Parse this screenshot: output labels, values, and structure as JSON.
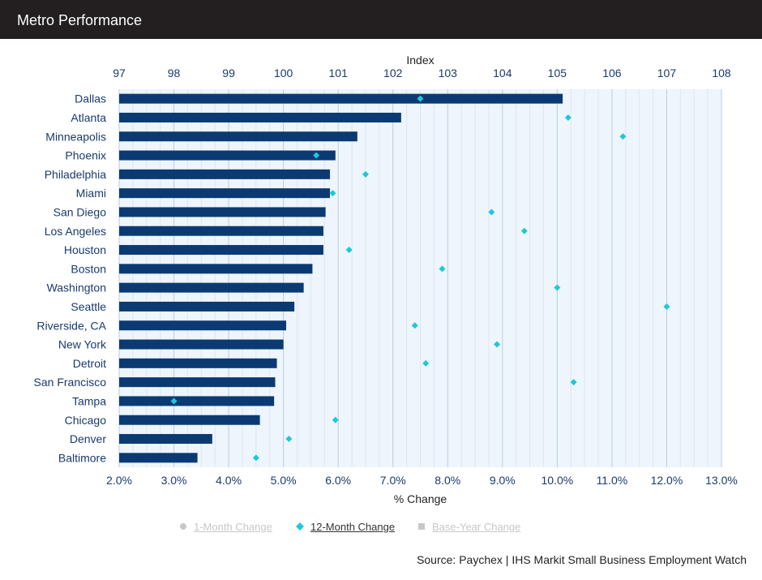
{
  "header": {
    "title": "Metro Performance"
  },
  "chart_data": {
    "type": "bar",
    "orientation": "horizontal",
    "categories": [
      "Dallas",
      "Atlanta",
      "Minneapolis",
      "Phoenix",
      "Philadelphia",
      "Miami",
      "San Diego",
      "Los Angeles",
      "Houston",
      "Boston",
      "Washington",
      "Seattle",
      "Riverside, CA",
      "New York",
      "Detroit",
      "San Francisco",
      "Tampa",
      "Chicago",
      "Denver",
      "Baltimore"
    ],
    "series": [
      {
        "name": "Index",
        "kind": "bar",
        "axis": "top",
        "color": "#0b3a73",
        "values": [
          105.1,
          102.15,
          101.35,
          100.95,
          100.85,
          100.85,
          100.77,
          100.73,
          100.73,
          100.53,
          100.37,
          100.2,
          100.05,
          100.0,
          99.88,
          99.85,
          99.83,
          99.57,
          98.7,
          98.43
        ]
      },
      {
        "name": "12-Month Change",
        "kind": "diamond",
        "axis": "bottom",
        "color": "#1ec8dc",
        "values": [
          7.5,
          10.2,
          11.2,
          5.6,
          6.5,
          5.9,
          8.8,
          9.4,
          6.2,
          7.9,
          10.0,
          12.0,
          7.4,
          8.9,
          7.6,
          10.3,
          3.0,
          5.95,
          5.1,
          4.5
        ]
      }
    ],
    "top_axis": {
      "label": "Index",
      "ticks": [
        "97",
        "98",
        "99",
        "100",
        "101",
        "102",
        "103",
        "104",
        "105",
        "106",
        "107",
        "108"
      ],
      "range": [
        97,
        108
      ]
    },
    "bottom_axis": {
      "label": "% Change",
      "ticks": [
        "2.0%",
        "3.0%",
        "4.0%",
        "5.0%",
        "6.0%",
        "7.0%",
        "8.0%",
        "9.0%",
        "10.0%",
        "11.0%",
        "12.0%",
        "13.0%"
      ],
      "range": [
        2,
        13
      ]
    },
    "grid": true,
    "legend_position": "bottom"
  },
  "legend": {
    "items": [
      {
        "label": "1-Month Change",
        "active": false,
        "marker": "circle",
        "color": "#c8c8c8"
      },
      {
        "label": "12-Month Change",
        "active": true,
        "marker": "diamond",
        "color": "#1ec8dc"
      },
      {
        "label": "Base-Year Change",
        "active": false,
        "marker": "square",
        "color": "#c8c8c8"
      }
    ]
  },
  "source": "Source: Paychex | IHS Markit Small Business Employment Watch"
}
